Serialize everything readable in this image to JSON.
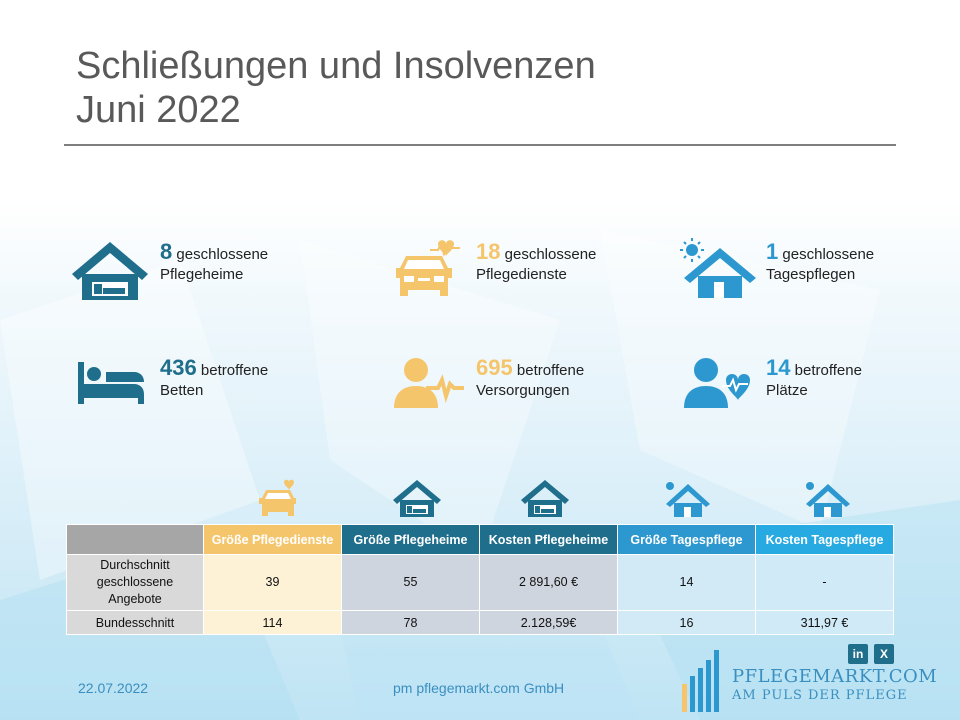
{
  "title": {
    "line1": "Schließungen und Insolvenzen",
    "line2": "Juni 2022"
  },
  "stats": [
    {
      "num": "8",
      "word": "geschlossene",
      "label": "Pflegeheime",
      "icon": "house-bed-icon",
      "color": "#1f6e8c"
    },
    {
      "num": "18",
      "word": "geschlossene",
      "label": "Pflegedienste",
      "icon": "car-heart-icon",
      "color": "#f5c56b"
    },
    {
      "num": "1",
      "word": "geschlossene",
      "label": "Tagespflegen",
      "icon": "house-sun-icon",
      "color": "#2c98cf"
    },
    {
      "num": "436",
      "word": "betroffene",
      "label": "Betten",
      "icon": "bed-icon",
      "color": "#1f6e8c"
    },
    {
      "num": "695",
      "word": "betroffene",
      "label": "Versorgungen",
      "icon": "person-pulse-icon",
      "color": "#f5c56b"
    },
    {
      "num": "14",
      "word": "betroffene",
      "label": "Plätze",
      "icon": "person-heart-icon",
      "color": "#2c98cf"
    }
  ],
  "table": {
    "headers": [
      "",
      "Größe Pflegedienste",
      "Größe Pflegeheime",
      "Kosten Pflegeheime",
      "Größe Tagespflege",
      "Kosten Tagespflege"
    ],
    "rows": [
      {
        "label_lines": [
          "Durchschnitt",
          "geschlossene",
          "Angebote"
        ],
        "cells": [
          "39",
          "55",
          "2 891,60 €",
          "14",
          "-"
        ]
      },
      {
        "label": "Bundesschnitt",
        "cells": [
          "114",
          "78",
          "2.128,59€",
          "16",
          "311,97 €"
        ]
      }
    ]
  },
  "footer": {
    "date": "22.07.2022",
    "company": "pm pflegemarkt.com GmbH",
    "logo_name": "PFLEGEMARKT.COM",
    "logo_tagline": "AM PULS DER PFLEGE",
    "social": [
      "in",
      "X"
    ]
  },
  "colors": {
    "teal": "#1f6e8c",
    "yellow": "#f5c56b",
    "blue": "#2c98cf",
    "light_blue": "#27a9e1",
    "gray": "#a6a6a6"
  }
}
